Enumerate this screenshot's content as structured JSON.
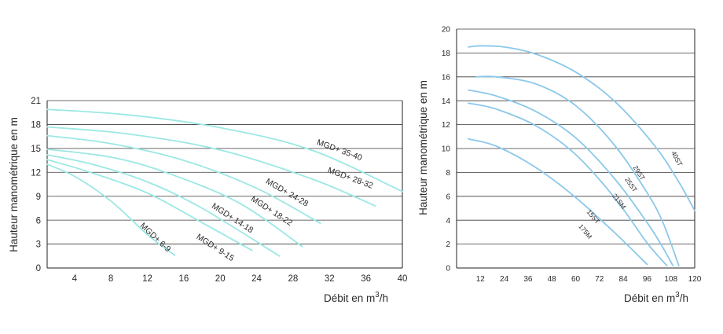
{
  "chart_data": [
    {
      "type": "line",
      "ylabel": "Hauteur manométrique en m",
      "xlabel": {
        "main": "Débit en m",
        "sup": "3",
        "tail": "/h"
      },
      "xlim": [
        1,
        40
      ],
      "ylim": [
        0,
        21
      ],
      "xticks": [
        4,
        8,
        12,
        16,
        20,
        24,
        28,
        32,
        36,
        40
      ],
      "yticks": [
        0,
        3,
        6,
        9,
        12,
        15,
        18,
        21
      ],
      "grid": "horizontal",
      "colors": {
        "curve": "#9be8e4",
        "grid": "#3a3a3a",
        "axis": "#222222",
        "text": "#2a2a2a"
      },
      "series": [
        {
          "name": "MGD+ 35-40",
          "x": [
            1,
            10,
            20,
            30,
            40
          ],
          "y": [
            19.9,
            19.2,
            17.6,
            14.8,
            9.6
          ]
        },
        {
          "name": "MGD+ 28-32",
          "x": [
            1,
            10,
            20,
            30,
            37
          ],
          "y": [
            17.7,
            16.8,
            14.8,
            11.2,
            7.8
          ]
        },
        {
          "name": "MGD+ 24-28",
          "x": [
            1,
            8,
            16,
            24,
            31
          ],
          "y": [
            16.6,
            15.6,
            13.5,
            10,
            5.6
          ]
        },
        {
          "name": "MGD+ 18-22",
          "x": [
            1,
            8,
            14,
            22,
            29
          ],
          "y": [
            14.9,
            13.9,
            12,
            8.2,
            2.7
          ]
        },
        {
          "name": "MGD+ 14-18",
          "x": [
            1,
            6,
            12,
            18,
            26.5
          ],
          "y": [
            14.2,
            13,
            10.8,
            7.5,
            1.5
          ]
        },
        {
          "name": "MGD+ 9-15",
          "x": [
            1,
            6,
            12,
            18,
            23.5
          ],
          "y": [
            13.6,
            11.9,
            9.4,
            5.7,
            2.2
          ]
        },
        {
          "name": "MGD+ 6-9",
          "x": [
            1,
            4,
            8,
            12,
            15
          ],
          "y": [
            13,
            11.5,
            8.4,
            4.2,
            1.6
          ]
        }
      ]
    },
    {
      "type": "line",
      "ylabel": "Hauteur manométrique en m",
      "xlabel": {
        "main": "Débit en m",
        "sup": "3",
        "tail": "/h"
      },
      "xlim": [
        0,
        120
      ],
      "ylim": [
        0,
        20
      ],
      "xticks": [
        12,
        24,
        36,
        48,
        60,
        72,
        84,
        96,
        108,
        120
      ],
      "yticks": [
        0,
        2,
        4,
        6,
        8,
        10,
        12,
        14,
        16,
        18,
        20
      ],
      "grid": "horizontal",
      "colors": {
        "curve": "#8cc8ea",
        "grid": "#3a3a3a",
        "axis": "#222222",
        "text": "#2a2a2a"
      },
      "series": [
        {
          "name": "40ST",
          "x": [
            6,
            12,
            24,
            40,
            60,
            80,
            100,
            112,
            120
          ],
          "y": [
            18.5,
            18.6,
            18.5,
            17.9,
            16.4,
            13.9,
            10.2,
            7.2,
            4.8
          ]
        },
        {
          "name": "29ST",
          "x": [
            10,
            20,
            40,
            60,
            80,
            96,
            104,
            112
          ],
          "y": [
            16,
            16,
            15.4,
            13.6,
            10.2,
            6.3,
            3.8,
            0.2
          ]
        },
        {
          "name": "25ST",
          "x": [
            6,
            20,
            40,
            60,
            80,
            96,
            104,
            109
          ],
          "y": [
            14.9,
            14.4,
            13.1,
            10.9,
            7.4,
            3.8,
            1.7,
            0.2
          ]
        },
        {
          "name": "21SM",
          "x": [
            6,
            20,
            40,
            60,
            80,
            96,
            106
          ],
          "y": [
            13.8,
            13.3,
            11.9,
            9.5,
            5.8,
            2.1,
            0.2
          ]
        },
        {
          "name": "15ST",
          "x": [
            6,
            20,
            40,
            60,
            80,
            96
          ],
          "y": [
            10.8,
            10.2,
            8.4,
            5.9,
            2.9,
            0.3
          ]
        }
      ],
      "annotations": [
        {
          "text": "175M",
          "anchor_series": "15ST",
          "x": 64,
          "y": 3.2
        }
      ]
    }
  ]
}
